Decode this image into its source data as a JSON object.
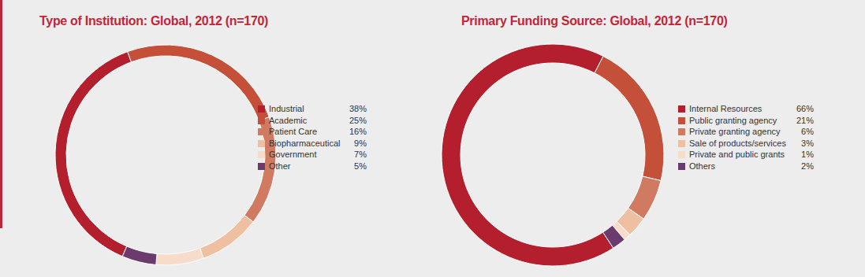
{
  "chart_data": [
    {
      "type": "pie",
      "title": "Type of Institution: Global, 2012 (n=170)",
      "categories": [
        "Industrial",
        "Academic",
        "Patient Care",
        "Biopharmaceutical",
        "Government",
        "Other"
      ],
      "values": [
        38,
        25,
        16,
        9,
        7,
        5
      ],
      "value_labels": [
        "38%",
        "25%",
        "16%",
        "9%",
        "7%",
        "5%"
      ],
      "colors": [
        "#b41f2e",
        "#c4503a",
        "#d07a61",
        "#efbfa2",
        "#f7dccb",
        "#6b3b6e"
      ],
      "legend": "right"
    },
    {
      "type": "pie",
      "title": "Primary Funding Source: Global, 2012 (n=170)",
      "categories": [
        "Internal Resources",
        "Public granting agency",
        "Private granting agency",
        "Sale of products/services",
        "Private and public grants",
        "Others"
      ],
      "values": [
        66,
        21,
        6,
        3,
        1,
        2
      ],
      "value_labels": [
        "66%",
        "21%",
        "6%",
        "3%",
        "1%",
        "2%"
      ],
      "colors": [
        "#b41f2e",
        "#c4503a",
        "#d07a61",
        "#efbfa2",
        "#f7dccb",
        "#6b3b6e"
      ],
      "legend": "right"
    }
  ]
}
